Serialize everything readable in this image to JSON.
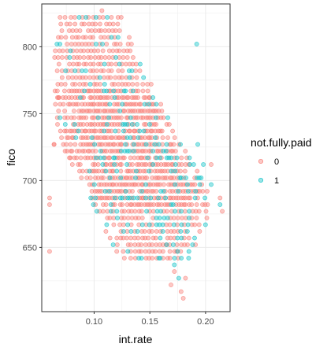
{
  "chart_data": {
    "type": "scatter",
    "xlabel": "int.rate",
    "ylabel": "fico",
    "xlim": [
      0.053,
      0.222
    ],
    "ylim": [
      602,
      832
    ],
    "x_ticks": [
      0.1,
      0.15,
      0.2
    ],
    "x_tick_labels": [
      "0.10",
      "0.15",
      "0.20"
    ],
    "y_ticks": [
      650,
      700,
      750,
      800
    ],
    "y_tick_labels": [
      "650",
      "700",
      "750",
      "800"
    ],
    "grid": true,
    "legend": {
      "title": "not.fully.paid",
      "position": "right",
      "entries": [
        "0",
        "1"
      ]
    },
    "point_alpha": 0.4,
    "fico_step": 5,
    "band_rule": {
      "description": "points lie roughly between these int.rate bounds for each fico level",
      "fico_anchor": [
        640,
        660,
        680,
        700,
        720,
        740,
        760,
        780,
        800,
        820
      ],
      "xmin_anchor": [
        0.125,
        0.112,
        0.1,
        0.09,
        0.075,
        0.068,
        0.065,
        0.064,
        0.066,
        0.07
      ],
      "xmax_anchor": [
        0.185,
        0.2,
        0.205,
        0.2,
        0.185,
        0.17,
        0.16,
        0.145,
        0.135,
        0.125
      ]
    },
    "series": [
      {
        "name": "0",
        "color": "#F8766D"
      },
      {
        "name": "1",
        "color": "#00BFC4"
      }
    ],
    "extra_points": [
      {
        "series": "0",
        "x": [
          0.06,
          0.06,
          0.064,
          0.068,
          0.107,
          0.172,
          0.178,
          0.18,
          0.182,
          0.169,
          0.213,
          0.205,
          0.215,
          0.06,
          0.064
        ],
        "y": [
          647,
          682,
          727,
          762,
          827,
          632,
          617,
          612,
          627,
          622,
          687,
          712,
          677,
          687,
          727
        ]
      },
      {
        "series": "1",
        "x": [
          0.192,
          0.176,
          0.172,
          0.205,
          0.193,
          0.213,
          0.158,
          0.165,
          0.175,
          0.198
        ],
        "y": [
          802,
          627,
          637,
          697,
          727,
          682,
          642,
          652,
          647,
          712
        ]
      }
    ]
  }
}
